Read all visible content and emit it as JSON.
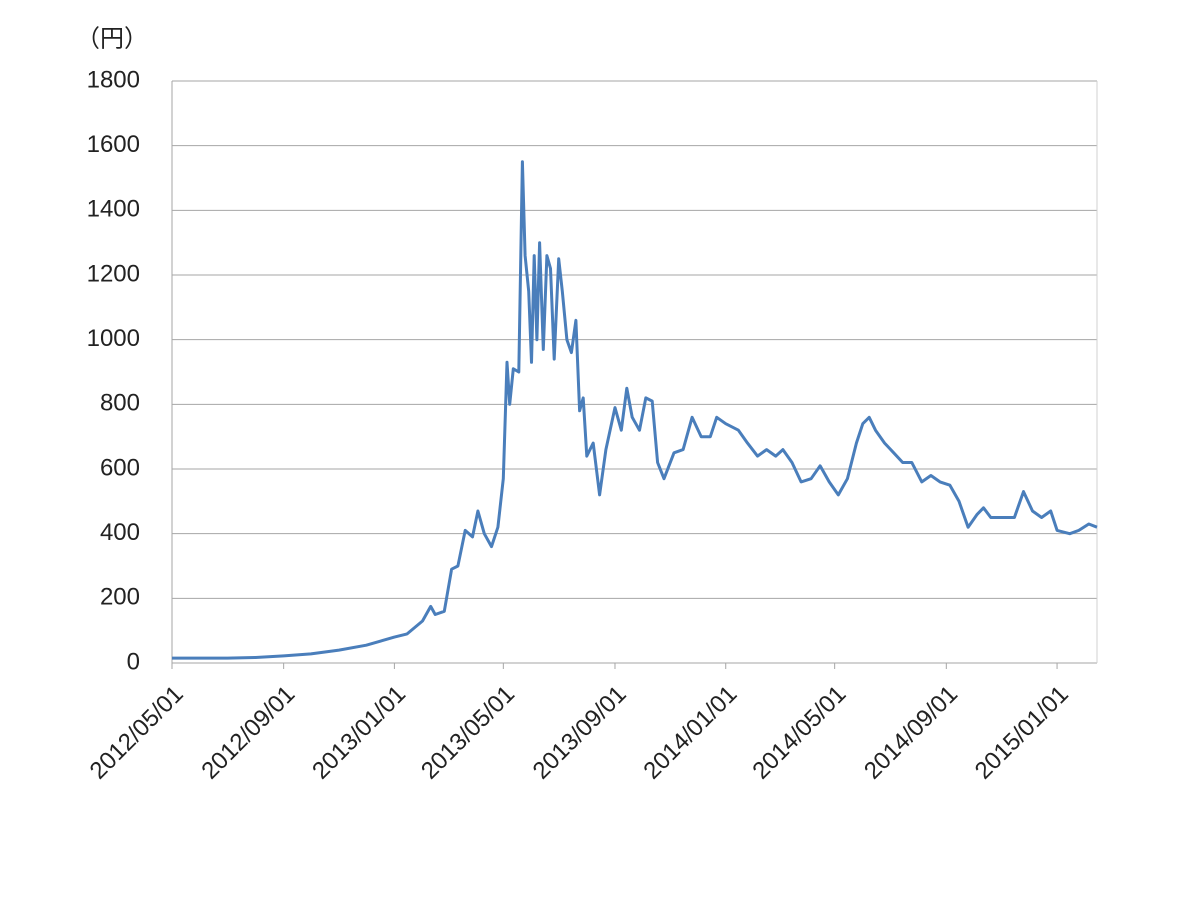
{
  "chart_data": {
    "type": "line",
    "y_label": "（円）",
    "x": [
      "2012/05/01",
      "2012/06/01",
      "2012/07/01",
      "2012/08/01",
      "2012/09/01",
      "2012/10/01",
      "2012/11/01",
      "2012/12/01",
      "2013/01/01",
      "2013/01/15",
      "2013/02/01",
      "2013/02/10",
      "2013/02/15",
      "2013/02/25",
      "2013/03/05",
      "2013/03/12",
      "2013/03/20",
      "2013/03/28",
      "2013/04/03",
      "2013/04/10",
      "2013/04/18",
      "2013/04/25",
      "2013/05/01",
      "2013/05/05",
      "2013/05/08",
      "2013/05/12",
      "2013/05/18",
      "2013/05/22",
      "2013/05/25",
      "2013/05/29",
      "2013/06/01",
      "2013/06/04",
      "2013/06/07",
      "2013/06/10",
      "2013/06/14",
      "2013/06/18",
      "2013/06/22",
      "2013/06/26",
      "2013/07/01",
      "2013/07/05",
      "2013/07/10",
      "2013/07/15",
      "2013/07/20",
      "2013/07/24",
      "2013/07/28",
      "2013/08/01",
      "2013/08/08",
      "2013/08/15",
      "2013/08/22",
      "2013/09/01",
      "2013/09/08",
      "2013/09/14",
      "2013/09/20",
      "2013/09/28",
      "2013/10/05",
      "2013/10/12",
      "2013/10/18",
      "2013/10/25",
      "2013/11/05",
      "2013/11/15",
      "2013/11/25",
      "2013/12/05",
      "2013/12/15",
      "2013/12/22",
      "2014/01/01",
      "2014/01/15",
      "2014/01/25",
      "2014/02/05",
      "2014/02/15",
      "2014/02/25",
      "2014/03/05",
      "2014/03/15",
      "2014/03/25",
      "2014/04/05",
      "2014/04/15",
      "2014/04/25",
      "2014/05/05",
      "2014/05/15",
      "2014/05/25",
      "2014/06/01",
      "2014/06/08",
      "2014/06/15",
      "2014/06/25",
      "2014/07/05",
      "2014/07/15",
      "2014/07/25",
      "2014/08/05",
      "2014/08/15",
      "2014/08/25",
      "2014/09/05",
      "2014/09/15",
      "2014/09/25",
      "2014/10/05",
      "2014/10/12",
      "2014/10/20",
      "2014/11/01",
      "2014/11/15",
      "2014/11/25",
      "2014/12/05",
      "2014/12/15",
      "2014/12/25",
      "2015/01/01",
      "2015/01/15",
      "2015/01/25",
      "2015/02/05",
      "2015/02/14"
    ],
    "series": [
      {
        "color": "#4a7ebb",
        "values": [
          15,
          15,
          15,
          17,
          22,
          28,
          40,
          55,
          80,
          90,
          130,
          175,
          150,
          160,
          290,
          300,
          410,
          390,
          470,
          400,
          360,
          420,
          570,
          930,
          800,
          910,
          900,
          1550,
          1260,
          1150,
          930,
          1260,
          1000,
          1300,
          970,
          1260,
          1220,
          940,
          1250,
          1150,
          1000,
          960,
          1060,
          780,
          820,
          640,
          680,
          520,
          660,
          790,
          720,
          850,
          760,
          720,
          820,
          810,
          620,
          570,
          650,
          660,
          760,
          700,
          700,
          760,
          740,
          720,
          680,
          640,
          660,
          640,
          660,
          620,
          560,
          570,
          610,
          560,
          520,
          570,
          680,
          740,
          760,
          720,
          680,
          650,
          620,
          620,
          560,
          580,
          560,
          550,
          500,
          420,
          460,
          480,
          450,
          450,
          450,
          530,
          470,
          450,
          470,
          410,
          400,
          410,
          430,
          420
        ]
      }
    ],
    "xlim": [
      "2012/05/01",
      "2015/02/14"
    ],
    "xticks": [
      "2012/05/01",
      "2012/09/01",
      "2013/01/01",
      "2013/05/01",
      "2013/09/01",
      "2014/01/01",
      "2014/05/01",
      "2014/09/01",
      "2015/01/01"
    ],
    "ylim": [
      0,
      1800
    ],
    "yticks": [
      0,
      200,
      400,
      600,
      800,
      1000,
      1200,
      1400,
      1600,
      1800
    ],
    "grid": true
  }
}
